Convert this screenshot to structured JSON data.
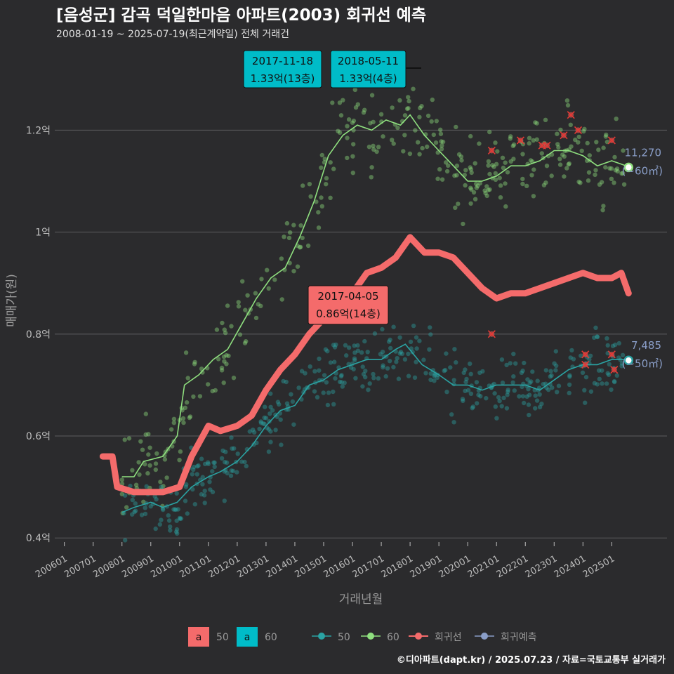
{
  "header": {
    "title": "[음성군] 감곡 덕일한마음 아파트(2003) 회귀선 예측",
    "subtitle": "2008-01-19 ~ 2025-07-19(최근계약일) 전체 거래건"
  },
  "caption": "©디아파트(dapt.kr) / 2025.07.23 / 자료=국토교통부 실거래가",
  "colors": {
    "background": "#2b2b2d",
    "series_50": "#2aa3a3",
    "series_60": "#8fe07f",
    "regression": "#f46b6b",
    "forecast": "#8a9ec8",
    "label_teal": "#00bcc8",
    "label_red": "#f46b6b"
  },
  "legend": {
    "label_swatch_a": "a",
    "label_50": "50",
    "label_60": "60",
    "line_50": "50",
    "line_60": "60",
    "regression": "회귀선",
    "forecast": "회귀예측"
  },
  "chart_data": {
    "type": "scatter",
    "xlabel": "거래년월",
    "ylabel": "매매가(원)",
    "x_range": [
      "2005-09",
      "2026-12"
    ],
    "ylim": [
      0.37,
      1.37
    ],
    "y_unit": "억",
    "x_ticks": [
      "200601",
      "200701",
      "200801",
      "200901",
      "201001",
      "201101",
      "201201",
      "201301",
      "201401",
      "201501",
      "201601",
      "201701",
      "201801",
      "201901",
      "202001",
      "202101",
      "202201",
      "202301",
      "202401",
      "202501"
    ],
    "y_ticks": [
      {
        "value": 0.4,
        "label": "0.4억"
      },
      {
        "value": 0.6,
        "label": "0.6억"
      },
      {
        "value": 0.8,
        "label": "0.8억"
      },
      {
        "value": 1.0,
        "label": "1억"
      },
      {
        "value": 1.2,
        "label": "1.2억"
      }
    ],
    "grid": true,
    "legend_position": "bottom",
    "series": [
      {
        "name": "60",
        "kind": "moving_average",
        "points": [
          [
            "2008-01",
            0.52
          ],
          [
            "2008-06",
            0.52
          ],
          [
            "2008-10",
            0.55
          ],
          [
            "2009-06",
            0.56
          ],
          [
            "2009-12",
            0.6
          ],
          [
            "2010-03",
            0.7
          ],
          [
            "2010-09",
            0.72
          ],
          [
            "2011-03",
            0.75
          ],
          [
            "2011-09",
            0.77
          ],
          [
            "2012-03",
            0.82
          ],
          [
            "2012-09",
            0.87
          ],
          [
            "2013-03",
            0.91
          ],
          [
            "2013-09",
            0.93
          ],
          [
            "2014-03",
            0.99
          ],
          [
            "2014-09",
            1.06
          ],
          [
            "2015-03",
            1.15
          ],
          [
            "2015-09",
            1.19
          ],
          [
            "2016-03",
            1.21
          ],
          [
            "2016-09",
            1.2
          ],
          [
            "2017-03",
            1.22
          ],
          [
            "2017-09",
            1.21
          ],
          [
            "2018-01",
            1.23
          ],
          [
            "2018-07",
            1.19
          ],
          [
            "2019-01",
            1.16
          ],
          [
            "2019-07",
            1.13
          ],
          [
            "2020-01",
            1.1
          ],
          [
            "2020-07",
            1.1
          ],
          [
            "2021-01",
            1.11
          ],
          [
            "2021-07",
            1.13
          ],
          [
            "2022-01",
            1.13
          ],
          [
            "2022-07",
            1.14
          ],
          [
            "2023-01",
            1.16
          ],
          [
            "2023-07",
            1.16
          ],
          [
            "2024-01",
            1.15
          ],
          [
            "2024-07",
            1.13
          ],
          [
            "2025-01",
            1.14
          ],
          [
            "2025-07",
            1.13
          ]
        ]
      },
      {
        "name": "50",
        "kind": "moving_average",
        "points": [
          [
            "2008-01",
            0.45
          ],
          [
            "2008-06",
            0.46
          ],
          [
            "2009-01",
            0.47
          ],
          [
            "2009-06",
            0.46
          ],
          [
            "2009-12",
            0.47
          ],
          [
            "2010-06",
            0.5
          ],
          [
            "2011-01",
            0.52
          ],
          [
            "2011-06",
            0.53
          ],
          [
            "2012-01",
            0.55
          ],
          [
            "2012-07",
            0.58
          ],
          [
            "2013-01",
            0.62
          ],
          [
            "2013-07",
            0.65
          ],
          [
            "2014-01",
            0.66
          ],
          [
            "2014-07",
            0.7
          ],
          [
            "2015-01",
            0.71
          ],
          [
            "2015-07",
            0.73
          ],
          [
            "2016-01",
            0.74
          ],
          [
            "2016-07",
            0.75
          ],
          [
            "2017-01",
            0.75
          ],
          [
            "2017-07",
            0.77
          ],
          [
            "2017-11",
            0.78
          ],
          [
            "2018-06",
            0.74
          ],
          [
            "2019-01",
            0.72
          ],
          [
            "2019-07",
            0.7
          ],
          [
            "2020-01",
            0.7
          ],
          [
            "2020-07",
            0.69
          ],
          [
            "2021-01",
            0.7
          ],
          [
            "2021-07",
            0.7
          ],
          [
            "2022-01",
            0.7
          ],
          [
            "2022-07",
            0.69
          ],
          [
            "2023-01",
            0.71
          ],
          [
            "2023-07",
            0.73
          ],
          [
            "2024-01",
            0.74
          ],
          [
            "2024-07",
            0.74
          ],
          [
            "2025-01",
            0.75
          ],
          [
            "2025-07",
            0.75
          ]
        ]
      },
      {
        "name": "회귀선",
        "kind": "regression",
        "points": [
          [
            "2007-05",
            0.56
          ],
          [
            "2007-09",
            0.56
          ],
          [
            "2007-11",
            0.5
          ],
          [
            "2008-06",
            0.49
          ],
          [
            "2009-06",
            0.49
          ],
          [
            "2010-01",
            0.5
          ],
          [
            "2010-06",
            0.56
          ],
          [
            "2011-01",
            0.62
          ],
          [
            "2011-06",
            0.61
          ],
          [
            "2012-01",
            0.62
          ],
          [
            "2012-07",
            0.64
          ],
          [
            "2013-01",
            0.69
          ],
          [
            "2013-07",
            0.73
          ],
          [
            "2014-01",
            0.76
          ],
          [
            "2014-07",
            0.8
          ],
          [
            "2015-01",
            0.83
          ],
          [
            "2015-07",
            0.85
          ],
          [
            "2016-01",
            0.88
          ],
          [
            "2016-07",
            0.92
          ],
          [
            "2017-01",
            0.93
          ],
          [
            "2017-07",
            0.95
          ],
          [
            "2018-01",
            0.99
          ],
          [
            "2018-07",
            0.96
          ],
          [
            "2019-01",
            0.96
          ],
          [
            "2019-07",
            0.95
          ],
          [
            "2020-01",
            0.92
          ],
          [
            "2020-07",
            0.89
          ],
          [
            "2021-01",
            0.87
          ],
          [
            "2021-07",
            0.88
          ],
          [
            "2022-01",
            0.88
          ],
          [
            "2022-07",
            0.89
          ],
          [
            "2023-01",
            0.9
          ],
          [
            "2023-07",
            0.91
          ],
          [
            "2024-01",
            0.92
          ],
          [
            "2024-07",
            0.91
          ],
          [
            "2025-01",
            0.91
          ],
          [
            "2025-05",
            0.92
          ],
          [
            "2025-08",
            0.88
          ]
        ]
      }
    ],
    "outliers": [
      [
        "2020-11",
        1.16
      ],
      [
        "2021-11",
        1.18
      ],
      [
        "2022-08",
        1.17
      ],
      [
        "2022-10",
        1.17
      ],
      [
        "2023-05",
        1.19
      ],
      [
        "2023-08",
        1.23
      ],
      [
        "2023-11",
        1.2
      ],
      [
        "2025-01",
        1.18
      ],
      [
        "2020-11",
        0.8
      ],
      [
        "2024-02",
        0.76
      ],
      [
        "2024-02",
        0.74
      ],
      [
        "2025-01",
        0.76
      ],
      [
        "2025-02",
        0.73
      ]
    ],
    "forecast_points": [
      {
        "series": "60",
        "x": "2025-08",
        "y": 1.127
      },
      {
        "series": "50",
        "x": "2025-08",
        "y": 0.7485
      }
    ],
    "forecast_labels": [
      {
        "series": "60",
        "x": "2025-08",
        "y": 1.127,
        "value": "11,270",
        "area": "(~60㎡)"
      },
      {
        "series": "50",
        "x": "2025-08",
        "y": 0.7485,
        "value": "7,485",
        "area": "(~50㎡)"
      }
    ],
    "annotations": [
      {
        "series": "60",
        "date": "2017-11-18",
        "price": "1.33억(13층)",
        "x": "2017-11",
        "y": 1.33
      },
      {
        "series": "60",
        "date": "2018-05-11",
        "price": "1.33억(4층)",
        "x": "2018-05",
        "y": 1.33
      },
      {
        "series": "회귀선",
        "date": "2017-04-05",
        "price": "0.86억(14층)",
        "x": "2017-04",
        "y": 0.86
      }
    ]
  }
}
